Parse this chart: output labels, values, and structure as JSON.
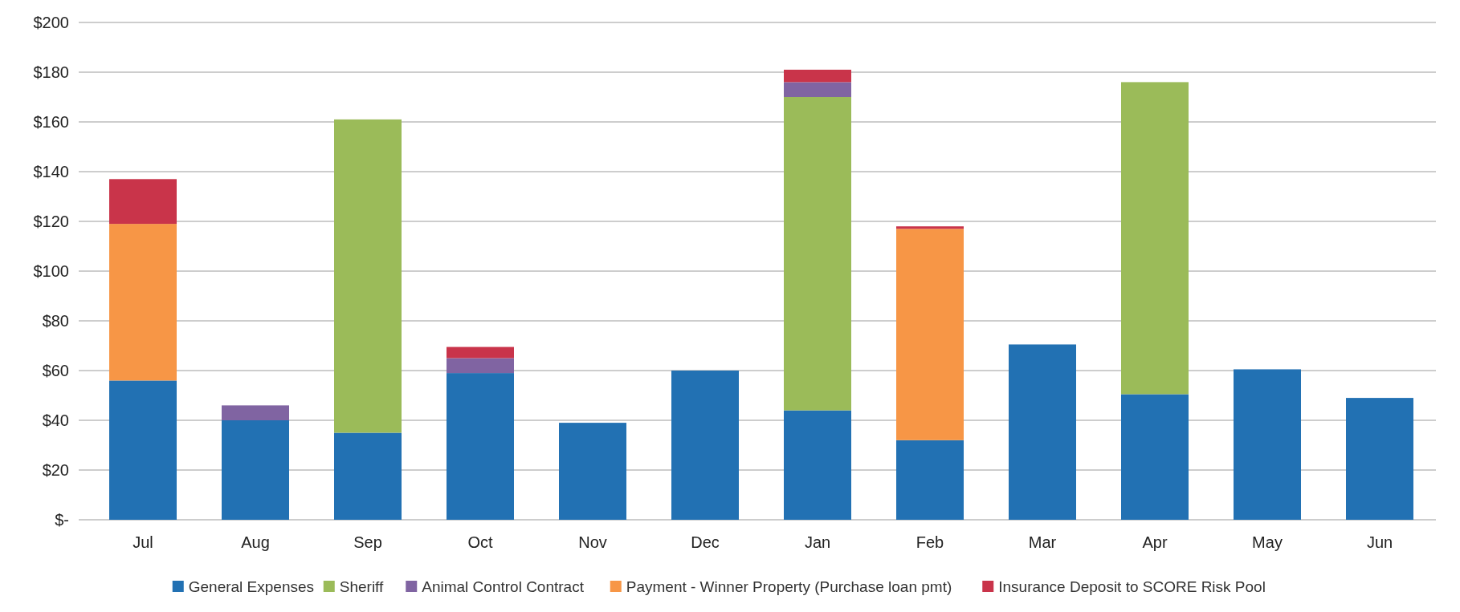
{
  "chart_data": {
    "type": "bar",
    "stacked": true,
    "categories": [
      "Jul",
      "Aug",
      "Sep",
      "Oct",
      "Nov",
      "Dec",
      "Jan",
      "Feb",
      "Mar",
      "Apr",
      "May",
      "Jun"
    ],
    "series": [
      {
        "name": "General Expenses",
        "color": "#2271b3",
        "values": [
          56,
          40,
          35,
          59,
          39,
          60,
          44,
          32,
          70.5,
          50.5,
          60.5,
          49
        ]
      },
      {
        "name": "Sheriff",
        "color": "#9bbb59",
        "values": [
          null,
          null,
          126,
          null,
          null,
          null,
          126,
          null,
          null,
          125.5,
          null,
          null
        ]
      },
      {
        "name": "Animal Control Contract",
        "color": "#8064a2",
        "values": [
          null,
          6,
          null,
          6,
          null,
          null,
          6,
          null,
          null,
          null,
          null,
          null
        ]
      },
      {
        "name": "Payment - Winner Property (Purchase loan pmt)",
        "color": "#f79646",
        "values": [
          63,
          null,
          null,
          null,
          null,
          null,
          null,
          85,
          null,
          null,
          null,
          null
        ]
      },
      {
        "name": "Insurance Deposit to SCORE Risk Pool",
        "color": "#c9344a",
        "values": [
          18,
          null,
          null,
          4.5,
          null,
          null,
          5,
          1,
          null,
          null,
          null,
          null
        ]
      }
    ],
    "ylim": [
      0,
      200
    ],
    "yticks": [
      {
        "value": 0,
        "label": "$-"
      },
      {
        "value": 20,
        "label": "$20"
      },
      {
        "value": 40,
        "label": "$40"
      },
      {
        "value": 60,
        "label": "$60"
      },
      {
        "value": 80,
        "label": "$80"
      },
      {
        "value": 100,
        "label": "$100"
      },
      {
        "value": 120,
        "label": "$120"
      },
      {
        "value": 140,
        "label": "$140"
      },
      {
        "value": 160,
        "label": "$160"
      },
      {
        "value": 180,
        "label": "$180"
      },
      {
        "value": 200,
        "label": "$200"
      }
    ],
    "grid": "y",
    "legend": "bottom"
  }
}
